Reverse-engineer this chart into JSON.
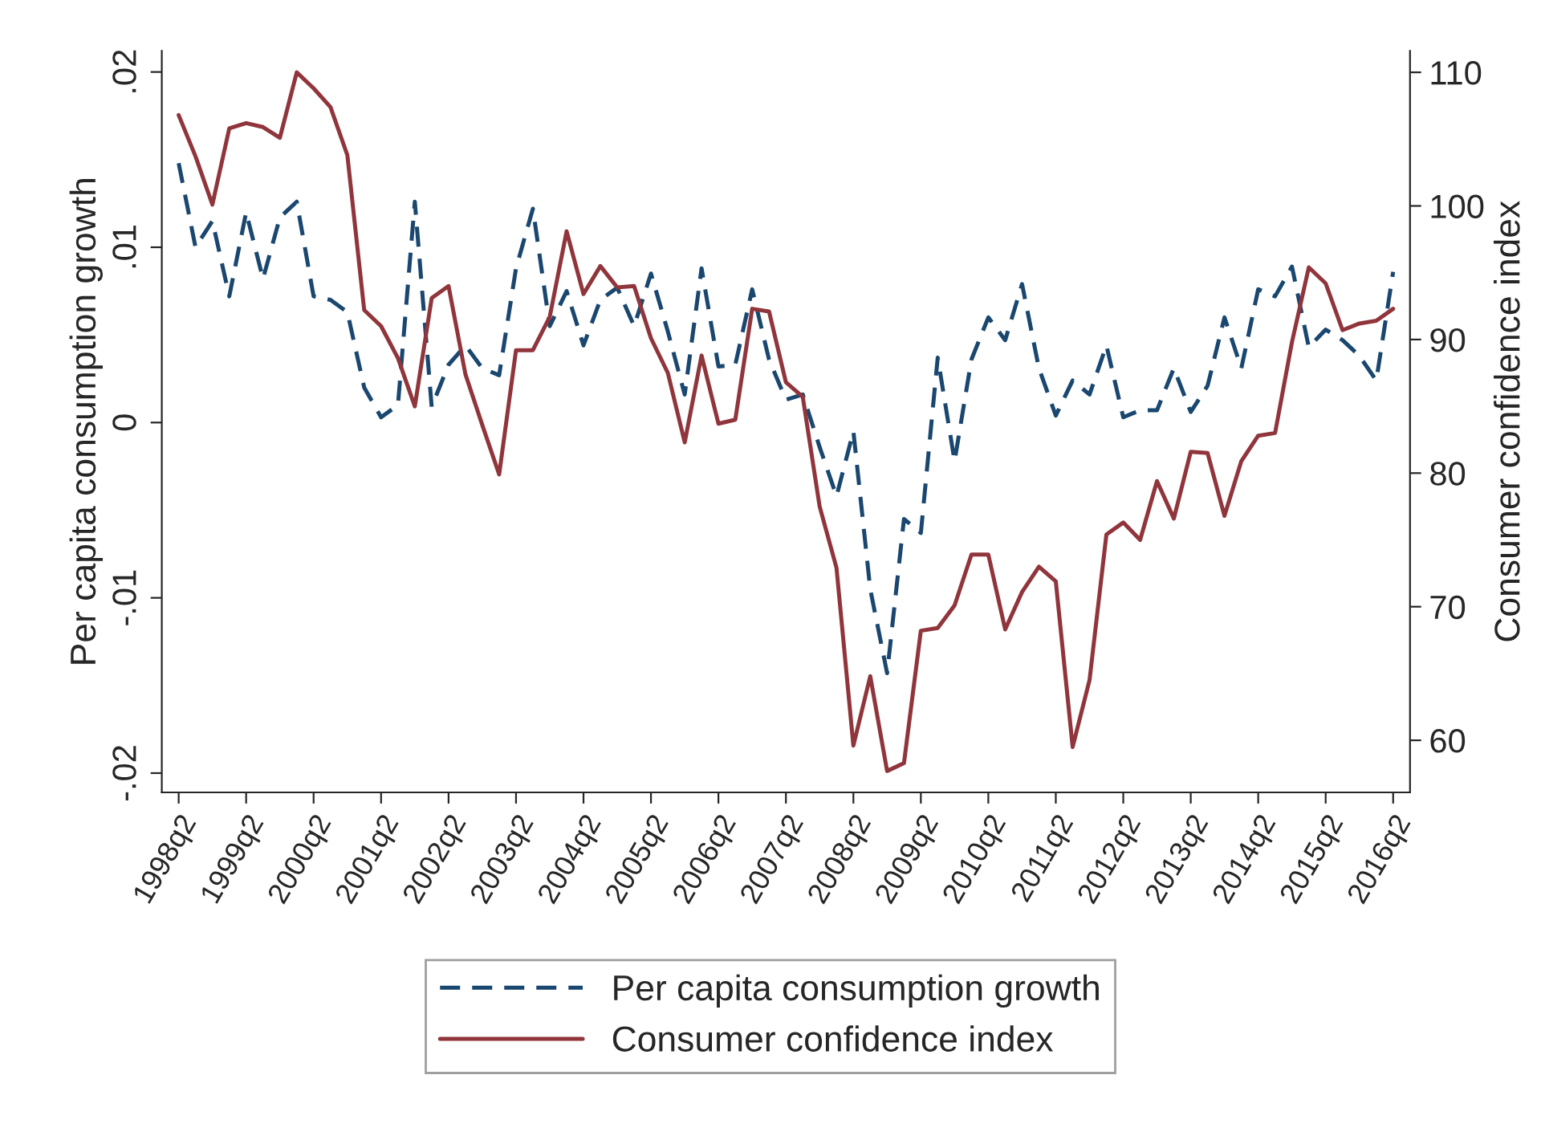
{
  "chart_data": {
    "type": "line",
    "categories": [
      "1998q2",
      null,
      null,
      null,
      "1999q2",
      null,
      null,
      null,
      "2000q2",
      null,
      null,
      null,
      "2001q2",
      null,
      null,
      null,
      "2002q2",
      null,
      null,
      null,
      "2003q2",
      null,
      null,
      null,
      "2004q2",
      null,
      null,
      null,
      "2005q2",
      null,
      null,
      null,
      "2006q2",
      null,
      null,
      null,
      "2007q2",
      null,
      null,
      null,
      "2008q2",
      null,
      null,
      null,
      "2009q2",
      null,
      null,
      null,
      "2010q2",
      null,
      null,
      null,
      "2011q2",
      null,
      null,
      null,
      "2012q2",
      null,
      null,
      null,
      "2013q2",
      null,
      null,
      null,
      "2014q2",
      null,
      null,
      null,
      "2015q2",
      null,
      null,
      null,
      "2016q2"
    ],
    "ylabel": "Per capita consumption growth",
    "y2label": "Consumer confidence index",
    "ylim": [
      -0.0211,
      0.0212
    ],
    "yticks": [
      {
        "value": -0.02,
        "label": "-.02"
      },
      {
        "value": -0.01,
        "label": "-.01"
      },
      0,
      {
        "value": 0.01,
        "label": ".01"
      },
      {
        "value": 0.02,
        "label": ".02"
      }
    ],
    "y2lim": [
      56.1,
      111.6
    ],
    "y2ticks": [
      60,
      70,
      80,
      90,
      100,
      110
    ],
    "series": [
      {
        "name": "Per capita consumption growth",
        "color": "#1a476f",
        "line_style": "dashed",
        "values": [
          0.0148,
          0.01,
          0.0115,
          0.0072,
          0.012,
          0.0082,
          0.0117,
          0.0126,
          0.0072,
          0.007,
          0.0063,
          0.002,
          0.0003,
          0.001,
          0.0126,
          0.0009,
          0.0033,
          0.0044,
          0.0031,
          0.0027,
          0.0088,
          0.0122,
          0.0055,
          0.0075,
          0.0044,
          0.007,
          0.0077,
          0.0055,
          0.0085,
          0.0052,
          0.0016,
          0.0088,
          0.0032,
          0.0033,
          0.0076,
          0.0036,
          0.0013,
          0.0016,
          -0.0014,
          -0.0042,
          -0.0005,
          -0.0095,
          -0.0143,
          -0.0055,
          -0.0063,
          0.0037,
          -0.0022,
          0.0036,
          0.006,
          0.0047,
          0.0079,
          0.0031,
          0.0004,
          0.0024,
          0.0016,
          0.0044,
          0.0003,
          0.0007,
          0.0007,
          0.0031,
          0.0006,
          0.0021,
          0.006,
          0.0031,
          0.0076,
          0.0072,
          0.0089,
          0.0043,
          0.0053,
          0.0047,
          0.0038,
          0.0024,
          0.0086
        ]
      },
      {
        "name": "Consumer confidence index",
        "color": "#90353b",
        "line_style": "solid",
        "axis": "y2",
        "values": [
          106.8,
          103.7,
          100.1,
          105.8,
          106.2,
          105.9,
          105.1,
          110.0,
          108.8,
          107.4,
          103.8,
          92.2,
          91.0,
          88.6,
          85.0,
          93.1,
          94.0,
          87.4,
          83.6,
          79.9,
          89.2,
          89.2,
          91.7,
          98.1,
          93.4,
          95.5,
          93.9,
          94.0,
          90.1,
          87.5,
          82.3,
          88.8,
          83.7,
          84.0,
          92.3,
          92.1,
          86.8,
          85.7,
          77.5,
          72.9,
          59.6,
          64.8,
          57.7,
          58.3,
          68.2,
          68.4,
          70.1,
          73.9,
          73.9,
          68.3,
          71.1,
          73.0,
          71.9,
          59.5,
          64.5,
          75.4,
          76.3,
          75.0,
          79.4,
          76.6,
          81.6,
          81.5,
          76.8,
          80.9,
          82.8,
          83.0,
          89.8,
          95.4,
          94.2,
          90.7,
          91.2,
          91.4,
          92.3
        ]
      }
    ],
    "grid": false,
    "legend": "bottom"
  }
}
